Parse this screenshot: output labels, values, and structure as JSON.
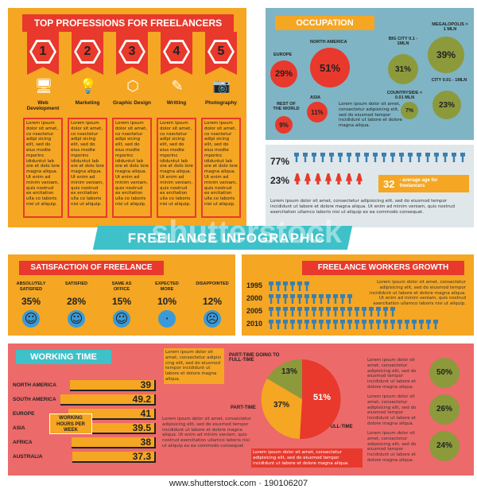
{
  "professions": {
    "title": "TOP PROFESSIONS FOR FREELANCERS",
    "items": [
      {
        "num": "1",
        "label": "Web development",
        "icon": "computer-icon"
      },
      {
        "num": "2",
        "label": "Marketing",
        "icon": "lightbulb-icon"
      },
      {
        "num": "3",
        "label": "Graphic design",
        "icon": "shapes-icon"
      },
      {
        "num": "4",
        "label": "Writting",
        "icon": "pencil-icon"
      },
      {
        "num": "5",
        "label": "Photography",
        "icon": "camera-icon"
      }
    ],
    "lorem": "Lorem ipsum dolor sit amet, co nsectetur adipi sicing elit, sed do eius modte mporinc ididuntut lab ore et dolo lore magna aliqua. Ut enim ad minim veniam, quis nostrud ex ercitation ulla co laboris nisi ut aliquip."
  },
  "occupation": {
    "title": "OCCUPATION",
    "europe": {
      "label": "EUROPE",
      "value": "29%"
    },
    "north_america": {
      "label": "NORTH AMERICA",
      "value": "51%"
    },
    "rest": {
      "label": "REST OF THE WORLD",
      "value": "9%"
    },
    "asia": {
      "label": "ASIA",
      "value": "11%"
    },
    "big_city": {
      "label": "BIG CITY 0.1 - 1MLN",
      "value": "31%"
    },
    "megalopolis": {
      "label": "MEGALOPOLIS > 1 MLN",
      "value": "39%"
    },
    "city": {
      "label": "CITY 0.01 - 1MLN",
      "value": "23%"
    },
    "countryside": {
      "label": "COUNTRYSIDE < 0.01 MLN",
      "value": "7%"
    },
    "lorem": "Lorem ipsum dolor sit amet, consectetur adipisicing elit, sed do eiusmod tempor incididunt ut labore et dolore magna aliqua."
  },
  "gender": {
    "male_pct": "77%",
    "female_pct": "23%",
    "age_value": "32",
    "age_label": "- average age for freelancers",
    "lorem": "Lorem ipsum dolor sit amet, consectetur adipisicing elit, sed do eiusmod tempor incididunt ut labore et dolore magna aliqua. Ut enim ad minim veniam, quis nostrud exercitation ullamco laboris nisi ut aliquip ex ea commodo consequat."
  },
  "banner": {
    "title": "FREELANCE INFOGRAPHIC",
    "watermark": "shutterstock"
  },
  "satisfaction": {
    "title": "SATISFACTION OF FREELANCE",
    "items": [
      {
        "label": "ABSOLUTELY SATISFIED",
        "value": "35%",
        "mood": "happy"
      },
      {
        "label": "SATISFIED",
        "value": "28%",
        "mood": "happy"
      },
      {
        "label": "SAME AS OFFICE",
        "value": "15%",
        "mood": "happy"
      },
      {
        "label": "EXPECTED MORE",
        "value": "10%",
        "mood": "neutral"
      },
      {
        "label": "DISAPPOINTED",
        "value": "12%",
        "mood": "sad"
      }
    ]
  },
  "growth": {
    "title": "FREELANCE WORKERS GROWTH",
    "rows": [
      {
        "year": "1995",
        "count": 0.25
      },
      {
        "year": "2000",
        "count": 0.5
      },
      {
        "year": "2005",
        "count": 0.75
      },
      {
        "year": "2010",
        "count": 1.0
      }
    ],
    "lorem": "Lorem ipsum dolor sit amet, consectetur adipisicing elit, sed do eiusmod tempor incididunt ut labore et dolore magna aliqua.",
    "lorem2": "Ut enim ad minim veniam, quis nostrud exercitation ullamco laboris nisi ut aliquip."
  },
  "working_time": {
    "title": "WORKING TIME",
    "hours_label": "WORKING HOURS PER WEEK",
    "rows": [
      {
        "region": "NORTH AMERICA",
        "value": "39"
      },
      {
        "region": "SOUTH AMERICA",
        "value": "49.2"
      },
      {
        "region": "EUROPE",
        "value": "41"
      },
      {
        "region": "ASIA",
        "value": "39.5"
      },
      {
        "region": "AFRICA",
        "value": "38"
      },
      {
        "region": "AUSTRALIA",
        "value": "37.3"
      }
    ],
    "note": "Lorem ipsum dolor sit amet, consectetur adipisi cing elit, sed do eiusmod tempor incididunt ut labore et dolore magna aliqua.",
    "lorem": "Lorem ipsum dolor sit amet, consectetur adipisicing elit, sed do eiusmod tempor incididunt ut labore et dolore magna aliqua. Ut enim ad minim veniam, quis nostrud exercitation ullamco laboris nisi ut aliquip ex ea commodo consequat."
  },
  "pie": {
    "label_going": "PART-TIME GOING TO FULL-TIME",
    "label_part": "PART-TIME",
    "label_full": "FULL-TIME",
    "going": "13%",
    "part": "37%",
    "full": "51%",
    "note": "Lorem ipsum dolor sit amet, consectetur adipisicing elit, sed do eiusmod tempor incididunt ut labore et dolore magna aliqua."
  },
  "right_stats": {
    "items": [
      {
        "value": "50%",
        "text": "Lorem ipsum dolor sit amet, consectetur adipisicing elit, sed do eiusmod tempor incididunt ut labore et dolore magna aliqua."
      },
      {
        "value": "26%",
        "text": "Lorem ipsum dolor sit amet, consectetur adipisicing elit, sed do eiusmod tempor incididunt ut labore et dolore magna aliqua."
      },
      {
        "value": "24%",
        "text": "Lorem ipsum dolor sit amet, consectetur adipisicing elit, sed do eiusmod tempor incididunt ut labore et dolore magna aliqua."
      }
    ]
  },
  "footer": {
    "url": "www.shutterstock.com · 190106207"
  },
  "colors": {
    "orange": "#f5a623",
    "red": "#e8392c",
    "teal": "#7fb4c4",
    "olive": "#8c9a3c",
    "pink": "#ec6a6a",
    "blue": "#3a9ad9"
  }
}
